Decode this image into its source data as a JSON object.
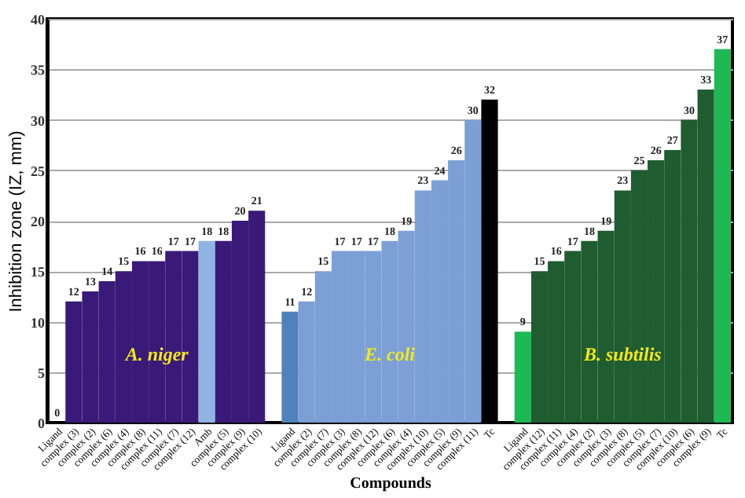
{
  "chart_data": {
    "type": "bar",
    "xlabel": "Compounds",
    "ylabel": "Inhibition zone (IZ, mm)",
    "categories": [
      "Ligand",
      "complex (3)",
      "complex (2)",
      "complex (6)",
      "complex (4)",
      "complex (8)",
      "complex (11)",
      "complex (7)",
      "complex (12)",
      "Amb",
      "complex (5)",
      "complex (9)",
      "complex (10)",
      null,
      "Ligand",
      "complex (2)",
      "complex (7)",
      "complex (3)",
      "complex (8)",
      "complex (12)",
      "complex (6)",
      "complex (4)",
      "complex (10)",
      "complex (5)",
      "complex (9)",
      "complex (11)",
      "Tc",
      null,
      "Ligand",
      "complex (12)",
      "complex (11)",
      "complex (4)",
      "complex (2)",
      "complex (3)",
      "complex (8)",
      "complex (5)",
      "complex (7)",
      "complex (10)",
      "complex (6)",
      "complex (9)",
      "Tc"
    ],
    "values": [
      0,
      12,
      13,
      14,
      15,
      16,
      16,
      17,
      17,
      18,
      18,
      20,
      21,
      null,
      11,
      12,
      15,
      17,
      17,
      17,
      18,
      19,
      23,
      24,
      26,
      30,
      32,
      null,
      9,
      15,
      16,
      17,
      18,
      19,
      23,
      25,
      26,
      27,
      30,
      33,
      37
    ],
    "colors": [
      "#3a1a78",
      "#3a1a78",
      "#3a1a78",
      "#3a1a78",
      "#3a1a78",
      "#3a1a78",
      "#3a1a78",
      "#3a1a78",
      "#3a1a78",
      "#8fb4e3",
      "#3a1a78",
      "#3a1a78",
      "#3a1a78",
      "#ffffff",
      "#4f81bd",
      "#7c9fd6",
      "#7c9fd6",
      "#7c9fd6",
      "#7c9fd6",
      "#7c9fd6",
      "#7c9fd6",
      "#7c9fd6",
      "#7c9fd6",
      "#7c9fd6",
      "#7c9fd6",
      "#7c9fd6",
      "#000000",
      "#ffffff",
      "#1db954",
      "#1f5c30",
      "#1f5c30",
      "#1f5c30",
      "#1f5c30",
      "#1f5c30",
      "#1f5c30",
      "#1f5c30",
      "#1f5c30",
      "#1f5c30",
      "#1f5c30",
      "#1f5c30",
      "#1db954"
    ],
    "annotations": [
      "A. niger",
      "E. coli",
      "B. subtilis"
    ],
    "ylim": [
      0,
      40
    ],
    "yticks": [
      0,
      5,
      10,
      15,
      20,
      25,
      30,
      35,
      40
    ],
    "grid": "y",
    "data_labels": true,
    "legend": false
  }
}
